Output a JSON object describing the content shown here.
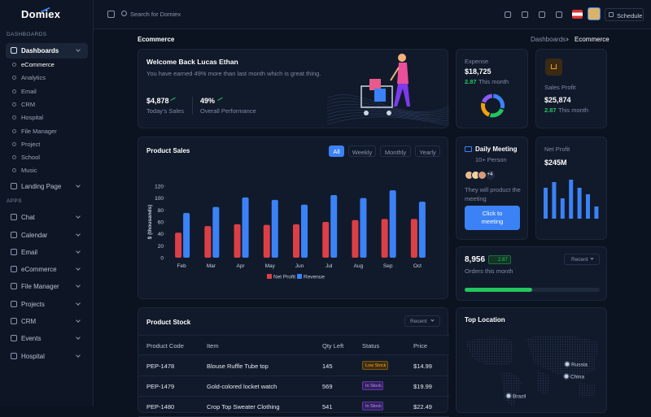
{
  "sidebar": {
    "logo": "Domiex",
    "sections": [
      {
        "title": "DASHBOARDS",
        "items": [
          {
            "label": "Dashboards",
            "children": [
              "eCommerce",
              "Analytics",
              "Email",
              "CRM",
              "Hospital",
              "File Manager",
              "Project",
              "School",
              "Music"
            ]
          },
          {
            "label": "Landing Page"
          }
        ]
      },
      {
        "title": "APPS",
        "items": [
          {
            "label": "Chat"
          },
          {
            "label": "Calendar"
          },
          {
            "label": "Email"
          },
          {
            "label": "eCommerce"
          },
          {
            "label": "File Manager"
          },
          {
            "label": "Projects"
          },
          {
            "label": "CRM"
          },
          {
            "label": "Events"
          },
          {
            "label": "Hospital"
          }
        ]
      }
    ]
  },
  "topbar": {
    "search_placeholder": "Search for Domiex",
    "schedule": "Schedule"
  },
  "breadcrumb": {
    "title": "Ecommerce",
    "crumbs": [
      "Dashboards",
      "Ecommerce"
    ]
  },
  "welcome": {
    "title": "Welcome Back Lucas Ethan",
    "text": "You have earned 49% more than last month which is great thing.",
    "stats": [
      {
        "value": "$4,878",
        "label": "Today's Sales"
      },
      {
        "value": "49%",
        "label": "Overall Performance"
      }
    ]
  },
  "expense": {
    "label": "Expense",
    "value": "$18,725",
    "change": "2.87",
    "period": "This month"
  },
  "sales_profit": {
    "label": "Sales Profit",
    "value": "$25,874",
    "change": "2.87",
    "period": "This month"
  },
  "meeting": {
    "title": "Daily Meeting",
    "subtitle": "10+ Person",
    "more": "+4",
    "text": "They will product the meeting",
    "button": "Click to meeting"
  },
  "orders": {
    "value": "8,956",
    "change": "2.87",
    "label": "Orders this month",
    "dropdown": "Recent",
    "progress": 50
  },
  "stock": {
    "title": "Product Stock",
    "dropdown": "Recent",
    "columns": [
      "Product Code",
      "Item",
      "Qty Left",
      "Status",
      "Price"
    ],
    "rows": [
      [
        "PEP-1478",
        "Blouse Ruffle Tube top",
        "145",
        "Low Stock",
        "$14.99"
      ],
      [
        "PEP-1479",
        "Gold-colored locket watch",
        "569",
        "In Stock",
        "$19.99"
      ],
      [
        "PEP-1480",
        "Crop Top Sweater Clothing",
        "541",
        "In Stock",
        "$22.49"
      ]
    ]
  },
  "location": {
    "title": "Top Location",
    "markers": [
      "Russia",
      "China",
      "Brazil"
    ]
  },
  "chart_data": [
    {
      "type": "bar",
      "title": "Product Sales",
      "tabs": [
        "All",
        "Weekly",
        "Monthly",
        "Yearly"
      ],
      "y_label": "$ (thousands)",
      "categories": [
        "Feb",
        "Mar",
        "Apr",
        "May",
        "Jun",
        "Jul",
        "Aug",
        "Sep",
        "Oct"
      ],
      "series": [
        {
          "name": "Net Profit",
          "color": "#dc3f46",
          "values": [
            42,
            53,
            56,
            55,
            56,
            60,
            63,
            65,
            65
          ]
        },
        {
          "name": "Revenue",
          "color": "#3b82f6",
          "values": [
            75,
            85,
            101,
            97,
            89,
            105,
            100,
            113,
            94
          ]
        }
      ],
      "ylim": [
        0,
        120
      ],
      "yticks": [
        0,
        20,
        40,
        60,
        80,
        100,
        120
      ],
      "legend": "bottom"
    },
    {
      "type": "donut",
      "values": [
        30,
        25,
        25,
        20
      ],
      "colors": [
        "#3b82f6",
        "#22c55e",
        "#f59e0b",
        "#8b5cf6"
      ]
    },
    {
      "type": "bar",
      "title": "Net Profit",
      "value": "$245M",
      "values": [
        38,
        45,
        25,
        48,
        38,
        30,
        15
      ],
      "color": "#3b82f6",
      "ylim": [
        0,
        60
      ]
    }
  ]
}
